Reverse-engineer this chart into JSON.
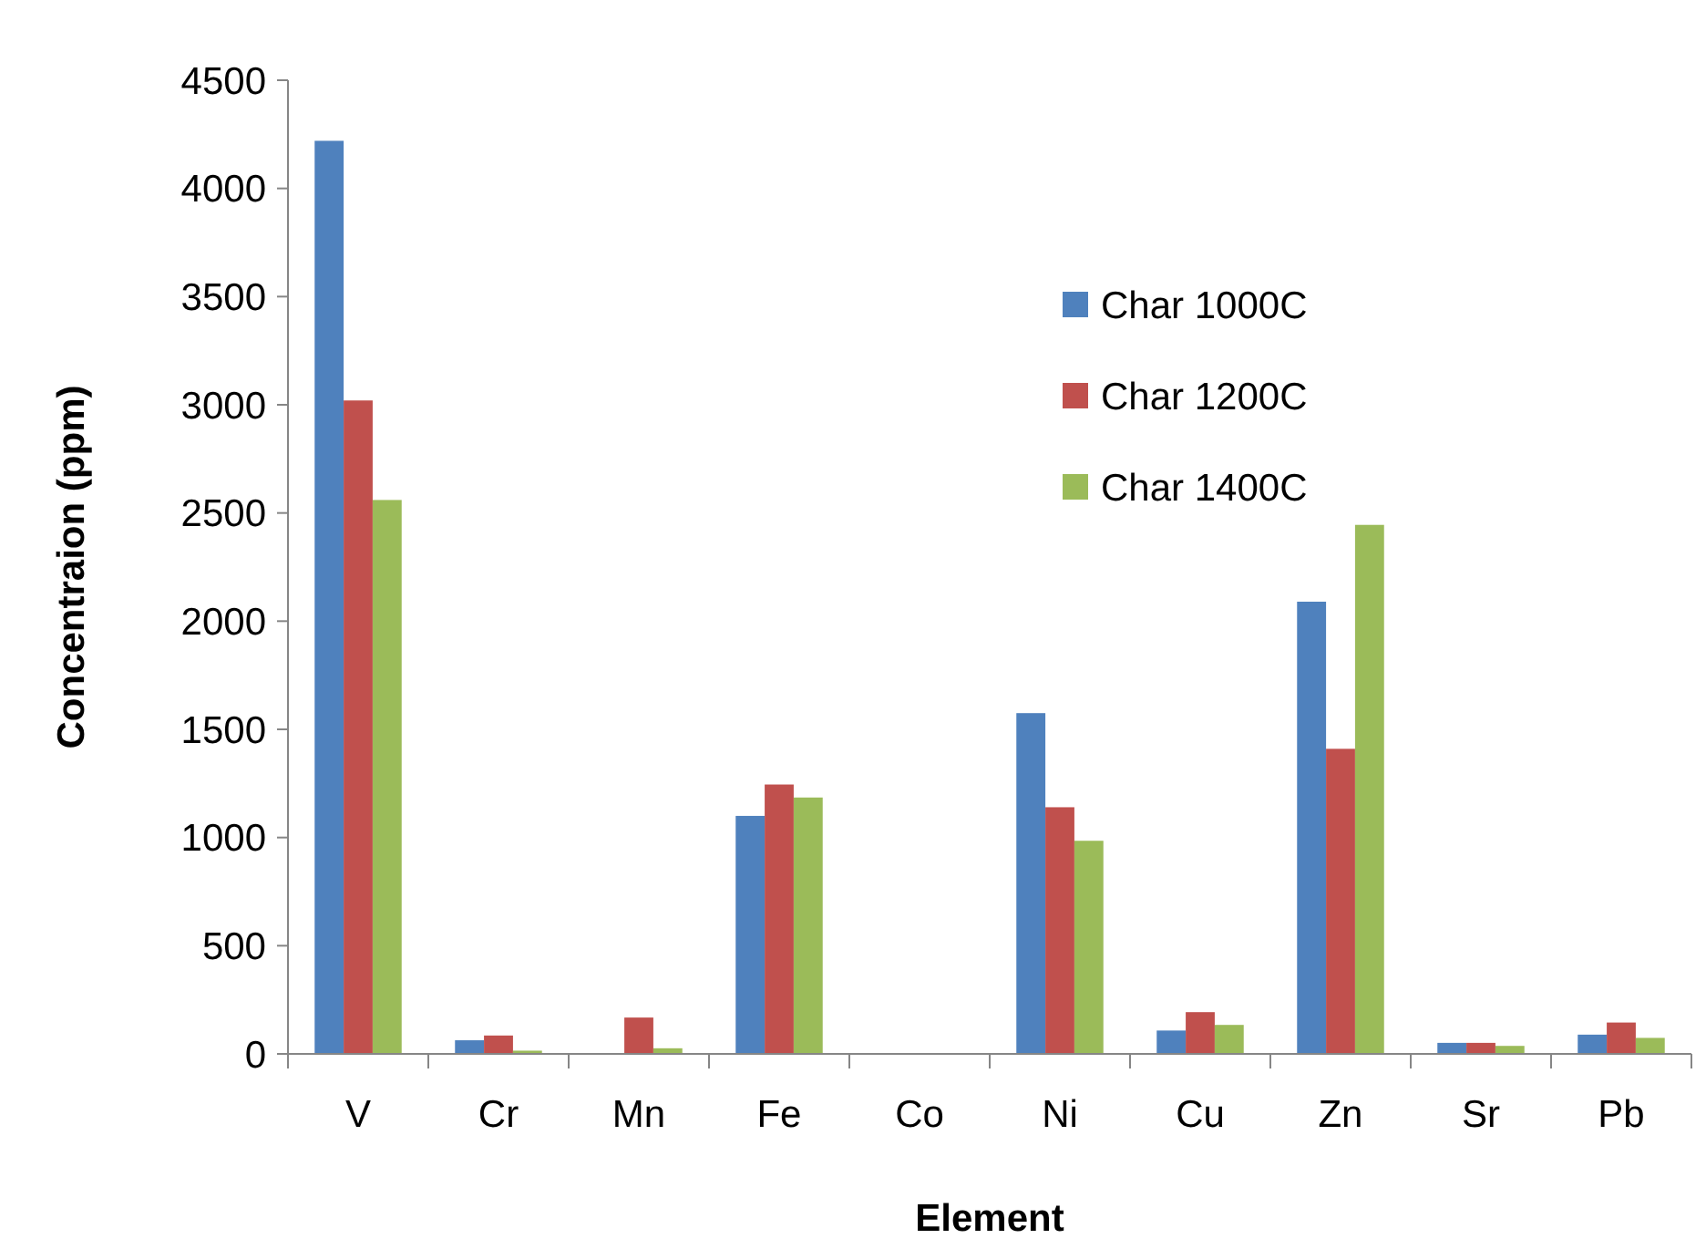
{
  "chart_data": {
    "type": "bar",
    "xlabel": "Element",
    "ylabel": "Concentraion (ppm)",
    "categories": [
      "V",
      "Cr",
      "Mn",
      "Fe",
      "Co",
      "Ni",
      "Cu",
      "Zn",
      "Sr",
      "Pb"
    ],
    "series": [
      {
        "name": "Char 1000C",
        "color": "#4f81bd",
        "values": [
          4220,
          63,
          0,
          1100,
          0,
          1575,
          108,
          2090,
          51,
          89
        ]
      },
      {
        "name": "Char 1200C",
        "color": "#c0504d",
        "values": [
          3020,
          85,
          168,
          1245,
          0,
          1140,
          193,
          1410,
          51,
          145
        ]
      },
      {
        "name": "Char 1400C",
        "color": "#9bbb59",
        "values": [
          2560,
          15,
          26,
          1185,
          0,
          985,
          134,
          2445,
          37,
          74
        ]
      }
    ],
    "ylim": [
      0,
      4500
    ],
    "yticks": [
      0,
      500,
      1000,
      1500,
      2000,
      2500,
      3000,
      3500,
      4000,
      4500
    ],
    "grid": false,
    "legend": "top right"
  }
}
